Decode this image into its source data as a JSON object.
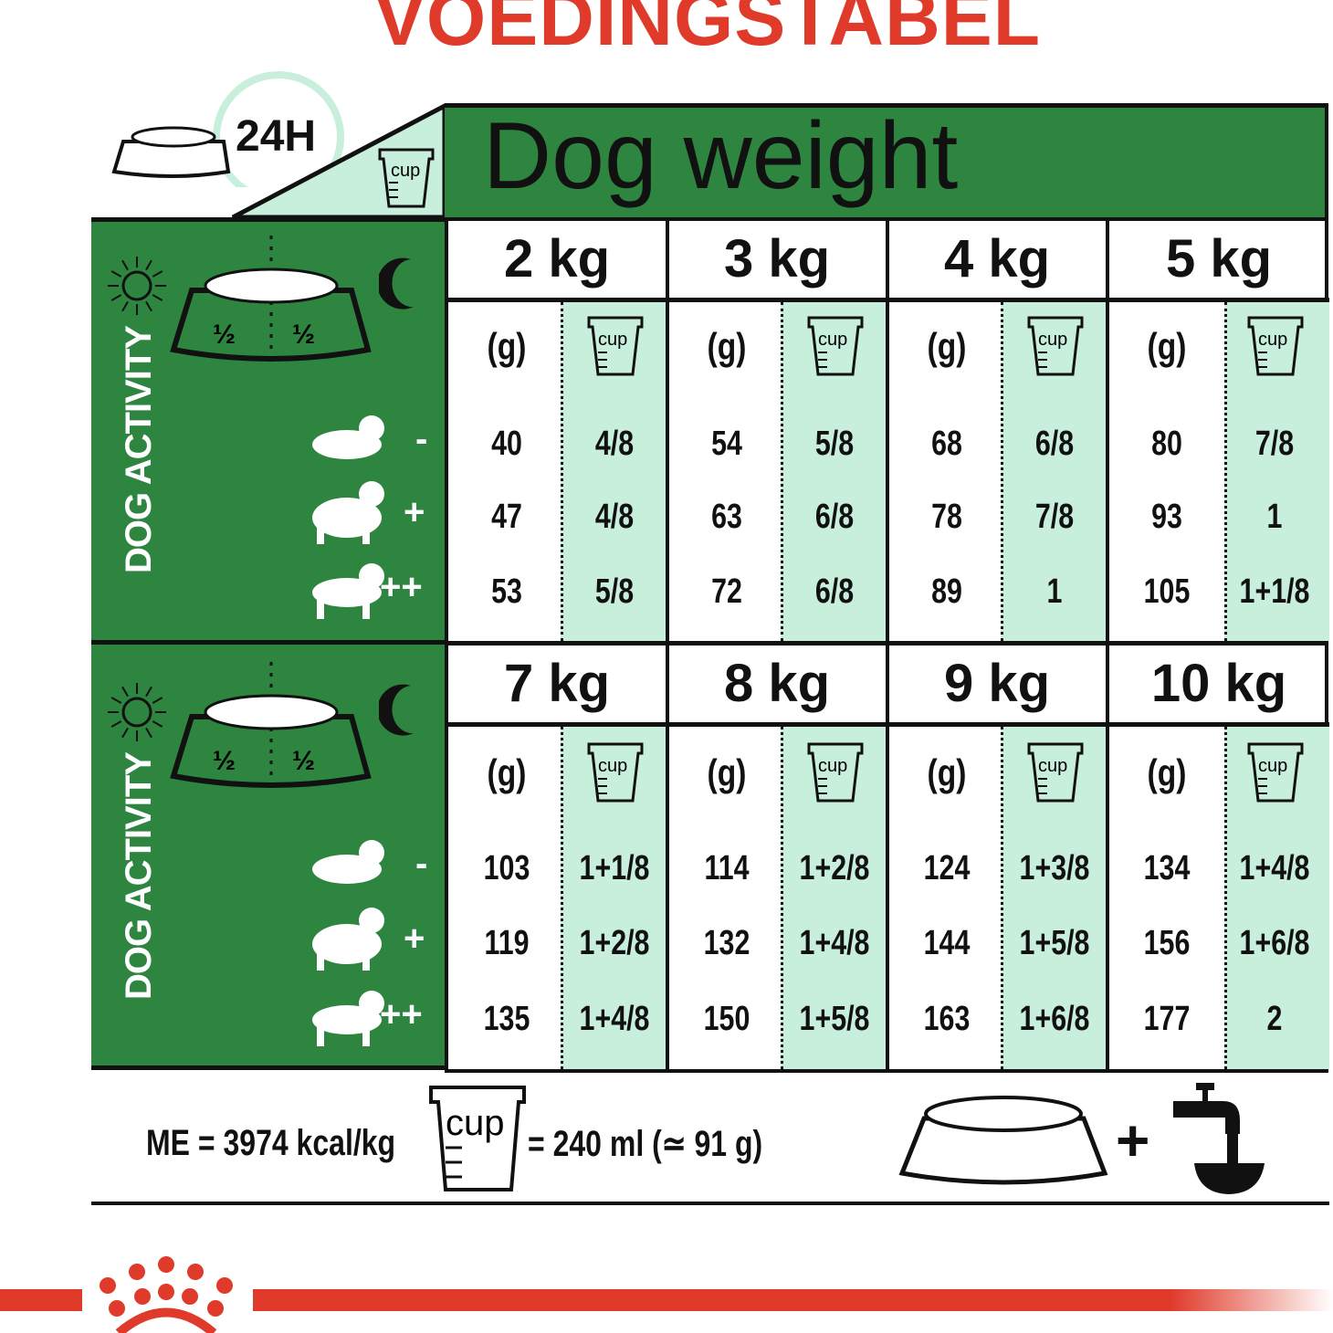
{
  "title": "VOEDINGSTABEL",
  "header": {
    "label": "Dog weight",
    "period": "24H",
    "cup_label": "cup"
  },
  "activity_label": "DOG ACTIVITY",
  "bowl_split": [
    "½",
    "½"
  ],
  "activity_levels": [
    "-",
    "+",
    "++"
  ],
  "unit_grams": "(g)",
  "cup_label": "cup",
  "colors": {
    "green": "#2e8540",
    "mint": "#c8eedc",
    "red": "#e03a2a"
  },
  "blocks": [
    {
      "weights": [
        {
          "weight": "2 kg",
          "rows": [
            [
              "40",
              "4/8"
            ],
            [
              "47",
              "4/8"
            ],
            [
              "53",
              "5/8"
            ]
          ]
        },
        {
          "weight": "3 kg",
          "rows": [
            [
              "54",
              "5/8"
            ],
            [
              "63",
              "6/8"
            ],
            [
              "72",
              "6/8"
            ]
          ]
        },
        {
          "weight": "4 kg",
          "rows": [
            [
              "68",
              "6/8"
            ],
            [
              "78",
              "7/8"
            ],
            [
              "89",
              "1"
            ]
          ]
        },
        {
          "weight": "5 kg",
          "rows": [
            [
              "80",
              "7/8"
            ],
            [
              "93",
              "1"
            ],
            [
              "105",
              "1+1/8"
            ]
          ]
        }
      ]
    },
    {
      "weights": [
        {
          "weight": "7 kg",
          "rows": [
            [
              "103",
              "1+1/8"
            ],
            [
              "119",
              "1+2/8"
            ],
            [
              "135",
              "1+4/8"
            ]
          ]
        },
        {
          "weight": "8 kg",
          "rows": [
            [
              "114",
              "1+2/8"
            ],
            [
              "132",
              "1+4/8"
            ],
            [
              "150",
              "1+5/8"
            ]
          ]
        },
        {
          "weight": "9 kg",
          "rows": [
            [
              "124",
              "1+3/8"
            ],
            [
              "144",
              "1+5/8"
            ],
            [
              "163",
              "1+6/8"
            ]
          ]
        },
        {
          "weight": "10 kg",
          "rows": [
            [
              "134",
              "1+4/8"
            ],
            [
              "156",
              "1+6/8"
            ],
            [
              "177",
              "2"
            ]
          ]
        }
      ]
    }
  ],
  "footer": {
    "energy": "ME = 3974 kcal/kg",
    "cup_label": "cup",
    "cup_equiv": "= 240 ml (≃ 91 g)",
    "plus": "+"
  },
  "icons": [
    "bowl-icon",
    "clock-icon",
    "cup-icon",
    "sun-icon",
    "moon-icon",
    "dog-lying-icon",
    "dog-standing-icon",
    "dog-running-icon",
    "water-tap-icon",
    "royal-canin-crown-logo"
  ]
}
